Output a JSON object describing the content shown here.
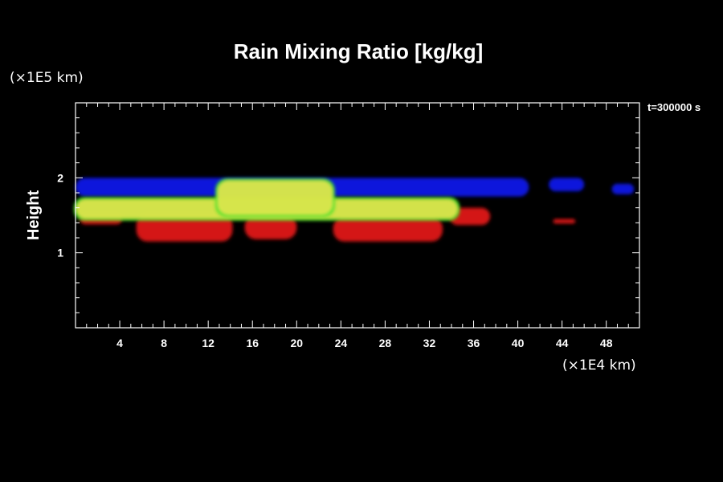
{
  "chart_data": {
    "type": "heatmap",
    "title": "Rain Mixing Ratio [kg/kg]",
    "ylabel": "Height",
    "x_unit": "(×1E4 km)",
    "y_unit": "(×1E5 km)",
    "time_label": "t=300000 s",
    "xlim": [
      0,
      51
    ],
    "ylim": [
      0,
      3
    ],
    "x_ticks": [
      4,
      8,
      12,
      16,
      20,
      24,
      28,
      32,
      36,
      40,
      44,
      48
    ],
    "x_tick_labels": [
      "4",
      "8",
      "12",
      "16",
      "20",
      "24",
      "28",
      "32",
      "36",
      "40",
      "44",
      "48"
    ],
    "y_ticks": [
      1,
      2
    ],
    "y_tick_labels": [
      "1",
      "2"
    ],
    "colors": {
      "low": "#0a14dc",
      "mid": "#e6e650",
      "high": "#d41414",
      "edge": "#30e020"
    },
    "regions": [
      {
        "level": "low",
        "x": [
          0,
          41
        ],
        "y": [
          1.75,
          2.0
        ]
      },
      {
        "level": "low",
        "x": [
          42.8,
          46.0
        ],
        "y": [
          1.82,
          2.0
        ]
      },
      {
        "level": "low",
        "x": [
          48.5,
          50.5
        ],
        "y": [
          1.78,
          1.92
        ]
      },
      {
        "level": "mid",
        "x": [
          0,
          34.6
        ],
        "y": [
          1.45,
          1.72
        ]
      },
      {
        "level": "mid",
        "x": [
          12.8,
          23.3
        ],
        "y": [
          1.5,
          1.97
        ]
      },
      {
        "level": "high",
        "x": [
          0.4,
          4.2
        ],
        "y": [
          1.38,
          1.52
        ]
      },
      {
        "level": "high",
        "x": [
          5.5,
          14.2
        ],
        "y": [
          1.15,
          1.52
        ]
      },
      {
        "level": "high",
        "x": [
          15.3,
          20.0
        ],
        "y": [
          1.18,
          1.5
        ]
      },
      {
        "level": "high",
        "x": [
          23.3,
          33.2
        ],
        "y": [
          1.15,
          1.48
        ]
      },
      {
        "level": "high",
        "x": [
          33.8,
          37.5
        ],
        "y": [
          1.37,
          1.6
        ]
      },
      {
        "level": "high",
        "x": [
          43.2,
          45.2
        ],
        "y": [
          1.39,
          1.45
        ]
      }
    ]
  }
}
